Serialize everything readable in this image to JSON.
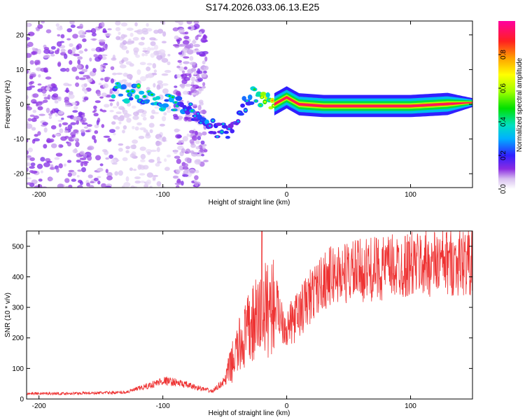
{
  "title": "S174.2026.033.06.13.E25",
  "chart_data": [
    {
      "type": "heatmap",
      "xlabel": "Height of straight line (km)",
      "ylabel": "Frequency (Hz)",
      "xlim": [
        -210,
        150
      ],
      "ylim": [
        -24,
        24
      ],
      "x_ticks": [
        -200,
        -100,
        0,
        100
      ],
      "y_ticks": [
        -20,
        -10,
        0,
        10,
        20
      ],
      "colorbar": {
        "label": "Normalized spectral amplitude",
        "range": [
          0,
          1
        ],
        "ticks": [
          "0.0",
          "0.2",
          "0.4",
          "0.6",
          "0.8"
        ],
        "tick_values": [
          0,
          0.2,
          0.4,
          0.6,
          0.8
        ]
      },
      "ridge": {
        "description": "frequency centroid of strong amplitude vs height",
        "x": [
          -140,
          -120,
          -100,
          -80,
          -60,
          -50,
          -40,
          -30,
          -20,
          -10,
          0,
          10,
          30,
          60,
          100,
          150
        ],
        "freq": [
          4,
          3,
          1,
          -1,
          -7,
          -8,
          -4,
          3,
          1,
          0,
          2,
          0,
          -0.5,
          -0.5,
          -0.5,
          0.5
        ],
        "amplitude": [
          0.3,
          0.35,
          0.3,
          0.25,
          0.25,
          0.2,
          0.2,
          0.25,
          0.5,
          0.6,
          0.6,
          0.9,
          0.95,
          1.0,
          1.0,
          0.3
        ]
      }
    },
    {
      "type": "line",
      "xlabel": "Height of straight line (km)",
      "ylabel": "SNR (10 * v/v)",
      "xlim": [
        -210,
        150
      ],
      "ylim": [
        0,
        550
      ],
      "x_ticks": [
        -200,
        -100,
        0,
        100
      ],
      "y_ticks": [
        0,
        100,
        200,
        300,
        400,
        500
      ],
      "series": [
        {
          "name": "SNR",
          "color": "#ee3333",
          "x": [
            -210,
            -180,
            -150,
            -130,
            -110,
            -100,
            -90,
            -70,
            -60,
            -50,
            -40,
            -30,
            -20,
            -10,
            0,
            10,
            20,
            30,
            40,
            60,
            80,
            100,
            120,
            150
          ],
          "y": [
            18,
            18,
            20,
            22,
            45,
            60,
            55,
            35,
            25,
            60,
            160,
            230,
            280,
            320,
            230,
            280,
            340,
            390,
            410,
            420,
            430,
            440,
            445,
            450
          ],
          "spike": {
            "x": -20,
            "y": 550
          }
        }
      ]
    }
  ]
}
